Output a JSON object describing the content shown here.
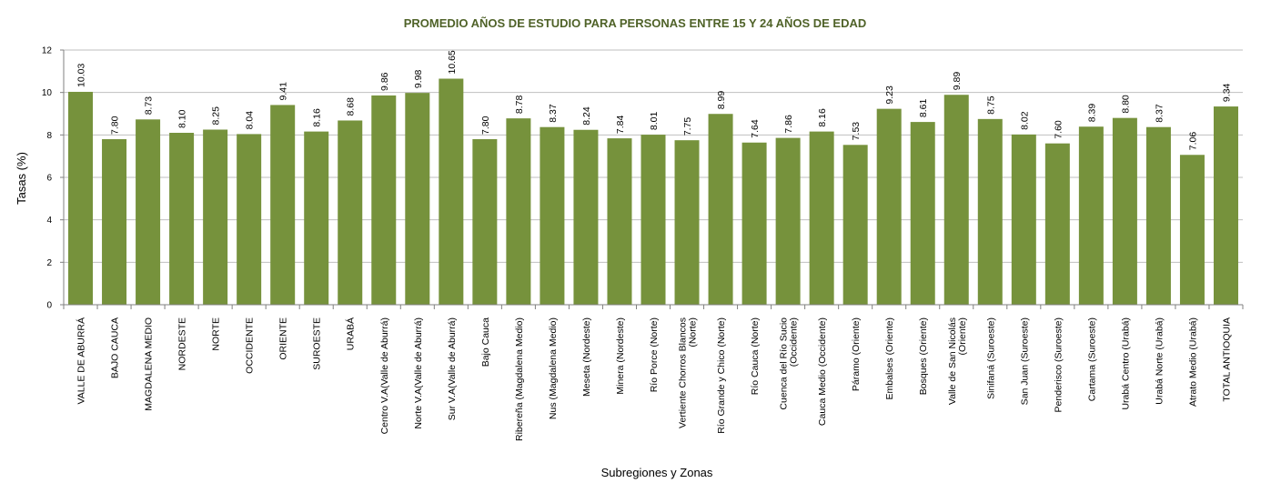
{
  "chart_data": {
    "type": "bar",
    "title": "PROMEDIO AÑOS DE ESTUDIO PARA PERSONAS ENTRE 15 Y 24 AÑOS DE EDAD",
    "xlabel": "Subregiones y Zonas",
    "ylabel": "Tasas (%)",
    "ylim": [
      0,
      12
    ],
    "yticks": [
      "0",
      "2",
      "4",
      "6",
      "8",
      "10",
      "12"
    ],
    "grid": true,
    "colors": {
      "bar": "#76923c",
      "title": "#4f6228",
      "grid": "#bfbfbf",
      "axis": "#808080"
    },
    "categories": [
      "VALLE DE ABURRÁ",
      "BAJO CAUCA",
      "MAGDALENA MEDIO",
      "NORDESTE",
      "NORTE",
      "OCCIDENTE",
      "ORIENTE",
      "SUROESTE",
      "URABÁ",
      "Centro V.A(Valle de Aburrá)",
      "Norte V.A(Valle de Aburrá)",
      "Sur V.A(Valle de Aburrá)",
      "Bajo Cauca",
      "Ribereña  (Magdalena Medio)",
      "Nus  (Magdalena Medio)",
      "Meseta  (Nordeste)",
      "Minera  (Nordeste)",
      "Río Porce   (Norte)",
      "Vertiente Chorros Blancos\n(Norte)",
      "Río Grande y Chico  (Norte)",
      "Río Cauca  (Norte)",
      "Cuenca del Río Sucio\n(Occidente)",
      "Cauca Medio  (Occidente)",
      "Páramo  (Oriente)",
      "Embalses (Oriente)",
      "Bosques  (Oriente)",
      "Valle de San Nicolás\n(Oriente)",
      "Sinifaná  (Suroeste)",
      "San Juan  (Suroeste)",
      "Penderisco  (Suroeste)",
      "Cartama  (Suroeste)",
      "Urabá Centro  (Urabá)",
      "Urabá Norte  (Urabá)",
      "Atrato Medio  (Urabá)",
      "TOTAL ANTIOQUIA"
    ],
    "values": [
      10.03,
      7.8,
      8.73,
      8.1,
      8.25,
      8.04,
      9.41,
      8.16,
      8.68,
      9.86,
      9.98,
      10.65,
      7.8,
      8.78,
      8.37,
      8.24,
      7.84,
      8.01,
      7.75,
      8.99,
      7.64,
      7.86,
      8.16,
      7.53,
      9.23,
      8.61,
      9.89,
      8.75,
      8.02,
      7.6,
      8.39,
      8.8,
      8.37,
      7.06,
      9.34
    ],
    "value_labels": [
      "10.03",
      "7.80",
      "8.73",
      "8.10",
      "8.25",
      "8.04",
      "9.41",
      "8.16",
      "8.68",
      "9.86",
      "9.98",
      "10.65",
      "7.80",
      "8.78",
      "8.37",
      "8.24",
      "7.84",
      "8.01",
      "7.75",
      "8.99",
      "7.64",
      "7.86",
      "8.16",
      "7.53",
      "9.23",
      "8.61",
      "9.89",
      "8.75",
      "8.02",
      "7.60",
      "8.39",
      "8.80",
      "8.37",
      "7.06",
      "9.34"
    ]
  }
}
